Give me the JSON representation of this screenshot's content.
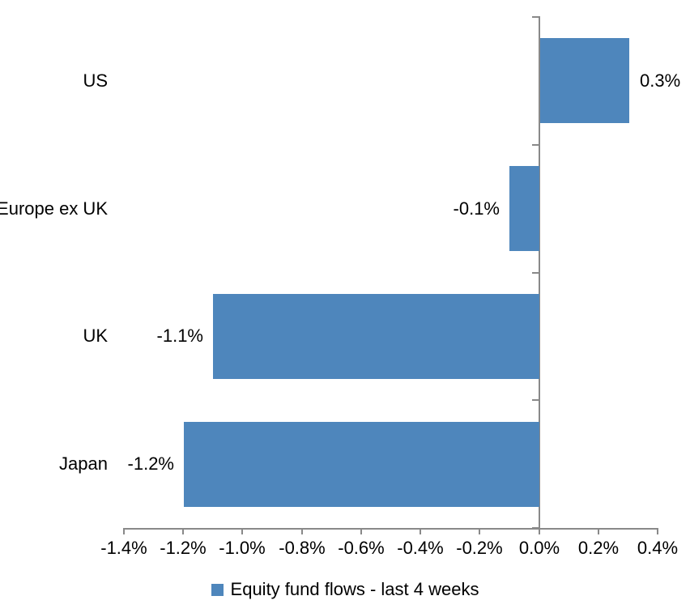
{
  "chart_data": {
    "type": "bar",
    "orientation": "horizontal",
    "title": "",
    "xlabel": "",
    "ylabel": "",
    "categories": [
      "US",
      "Europe ex UK",
      "UK",
      "Japan"
    ],
    "values": [
      0.3,
      -0.1,
      -1.1,
      -1.2
    ],
    "data_labels": [
      "0.3%",
      "-0.1%",
      "-1.1%",
      "-1.2%"
    ],
    "series_name": "Equity fund flows - last 4 weeks",
    "xlim": [
      -1.4,
      0.4
    ],
    "x_ticks": [
      -1.4,
      -1.2,
      -1.0,
      -0.8,
      -0.6,
      -0.4,
      -0.2,
      0.0,
      0.2,
      0.4
    ],
    "x_tick_labels": [
      "-1.4%",
      "-1.2%",
      "-1.0%",
      "-0.8%",
      "-0.6%",
      "-0.4%",
      "-0.2%",
      "0.0%",
      "0.2%",
      "0.4%"
    ],
    "grid": false,
    "legend_position": "bottom",
    "bar_color": "#4E86BC",
    "axis_color": "#898989",
    "text_color": "#000000"
  },
  "legend": {
    "label": "Equity fund flows - last 4 weeks"
  }
}
